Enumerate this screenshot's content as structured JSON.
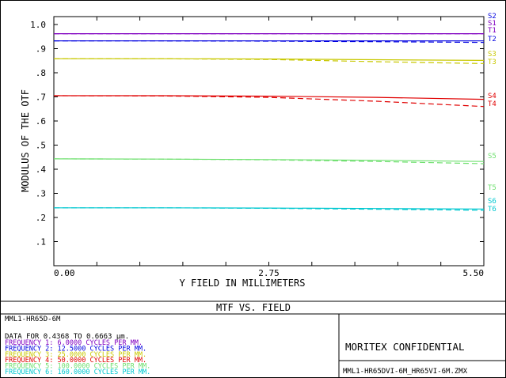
{
  "chart_data": {
    "type": "line",
    "title": "MTF VS. FIELD",
    "xlabel": "Y FIELD IN MILLIMETERS",
    "ylabel": "MODULUS OF THE OTF",
    "xlim": [
      0,
      5.5
    ],
    "ylim": [
      0,
      1.0
    ],
    "xticklabels": [
      {
        "value": 0,
        "label": "0.00"
      },
      {
        "value": 2.75,
        "label": "2.75"
      },
      {
        "value": 5.5,
        "label": "5.50"
      }
    ],
    "yticklabels": [
      {
        "value": 1.0,
        "label": "1.0"
      },
      {
        "value": 0.9,
        "label": ".9"
      },
      {
        "value": 0.8,
        "label": ".8"
      },
      {
        "value": 0.7,
        "label": ".7"
      },
      {
        "value": 0.6,
        "label": ".6"
      },
      {
        "value": 0.5,
        "label": ".5"
      },
      {
        "value": 0.4,
        "label": ".4"
      },
      {
        "value": 0.3,
        "label": ".3"
      },
      {
        "value": 0.2,
        "label": ".2"
      },
      {
        "value": 0.1,
        "label": ".1"
      }
    ],
    "grid": false,
    "series": [
      {
        "name": "S1",
        "color": "#8000c0",
        "style": "solid",
        "x": [
          0,
          1.375,
          2.75,
          4.125,
          5.5
        ],
        "y": [
          0.962,
          0.962,
          0.962,
          0.962,
          0.962
        ]
      },
      {
        "name": "T1",
        "color": "#8000c0",
        "style": "dashed",
        "x": [
          0,
          1.375,
          2.75,
          4.125,
          5.5
        ],
        "y": [
          0.962,
          0.962,
          0.962,
          0.962,
          0.962
        ]
      },
      {
        "name": "S2",
        "color": "#0000e0",
        "style": "solid",
        "x": [
          0,
          1.375,
          2.75,
          4.125,
          5.5
        ],
        "y": [
          0.932,
          0.932,
          0.932,
          0.932,
          0.932
        ]
      },
      {
        "name": "T2",
        "color": "#0000e0",
        "style": "dashed",
        "x": [
          0,
          1.375,
          2.75,
          4.125,
          5.5
        ],
        "y": [
          0.932,
          0.932,
          0.931,
          0.929,
          0.926
        ]
      },
      {
        "name": "S3",
        "color": "#c8c800",
        "style": "solid",
        "x": [
          0,
          1.375,
          2.75,
          4.125,
          5.5
        ],
        "y": [
          0.858,
          0.858,
          0.857,
          0.854,
          0.851
        ]
      },
      {
        "name": "T3",
        "color": "#c8c800",
        "style": "dashed",
        "x": [
          0,
          1.375,
          2.75,
          4.125,
          5.5
        ],
        "y": [
          0.858,
          0.858,
          0.855,
          0.846,
          0.838
        ]
      },
      {
        "name": "S4",
        "color": "#e00000",
        "style": "solid",
        "x": [
          0,
          1.375,
          2.75,
          4.125,
          5.5
        ],
        "y": [
          0.705,
          0.705,
          0.703,
          0.698,
          0.69
        ]
      },
      {
        "name": "T4",
        "color": "#e00000",
        "style": "dashed",
        "x": [
          0,
          1.375,
          2.75,
          4.125,
          5.5
        ],
        "y": [
          0.705,
          0.704,
          0.698,
          0.682,
          0.66
        ]
      },
      {
        "name": "S5",
        "color": "#70e070",
        "style": "solid",
        "x": [
          0,
          1.375,
          2.75,
          4.125,
          5.5
        ],
        "y": [
          0.443,
          0.442,
          0.44,
          0.437,
          0.432
        ]
      },
      {
        "name": "T5",
        "color": "#70e070",
        "style": "dashed",
        "x": [
          0,
          1.375,
          2.75,
          4.125,
          5.5
        ],
        "y": [
          0.443,
          0.442,
          0.439,
          0.432,
          0.423
        ]
      },
      {
        "name": "S6",
        "color": "#00c8d0",
        "style": "solid",
        "x": [
          0,
          1.375,
          2.75,
          4.125,
          5.5
        ],
        "y": [
          0.24,
          0.24,
          0.239,
          0.237,
          0.235
        ]
      },
      {
        "name": "T6",
        "color": "#00c8d0",
        "style": "dashed",
        "x": [
          0,
          1.375,
          2.75,
          4.125,
          5.5
        ],
        "y": [
          0.24,
          0.24,
          0.238,
          0.234,
          0.23
        ]
      }
    ],
    "legend": [
      {
        "text": "S2",
        "color": "#0000e0"
      },
      {
        "text": "S1",
        "color": "#8000c0"
      },
      {
        "text": "T1",
        "color": "#8000c0"
      },
      {
        "text": "T2",
        "color": "#0000e0"
      },
      {
        "text": "S3",
        "color": "#c8c800"
      },
      {
        "text": "T3",
        "color": "#c8c800"
      },
      {
        "text": "S4",
        "color": "#e00000"
      },
      {
        "text": "T4",
        "color": "#e00000"
      },
      {
        "text": "S5",
        "color": "#70e070"
      },
      {
        "text": "T5",
        "color": "#70e070"
      },
      {
        "text": "S6",
        "color": "#00c8d0"
      },
      {
        "text": "T6",
        "color": "#00c8d0"
      }
    ]
  },
  "info": {
    "lens_name": "MML1-HR65D-6M",
    "data_line": "DATA FOR 0.4368 TO 0.6663 µm.",
    "frequencies": [
      {
        "text": "FREQUENCY 1:    6.0000  CYCLES PER MM.",
        "color": "#8000c0"
      },
      {
        "text": "FREQUENCY 2:   12.5000  CYCLES PER MM.",
        "color": "#0000e0"
      },
      {
        "text": "FREQUENCY 3:   25.0000  CYCLES PER MM.",
        "color": "#c8c800"
      },
      {
        "text": "FREQUENCY 4:   50.0000  CYCLES PER MM.",
        "color": "#e00000"
      },
      {
        "text": "FREQUENCY 5:  100.0000  CYCLES PER MM.",
        "color": "#70e070"
      },
      {
        "text": "FREQUENCY 6:  160.0000  CYCLES PER MM.",
        "color": "#00c8d0"
      }
    ],
    "confidential": "MORITEX CONFIDENTIAL",
    "filename": "MML1-HR65DVI-6M_HR65VI-6M.ZMX"
  }
}
